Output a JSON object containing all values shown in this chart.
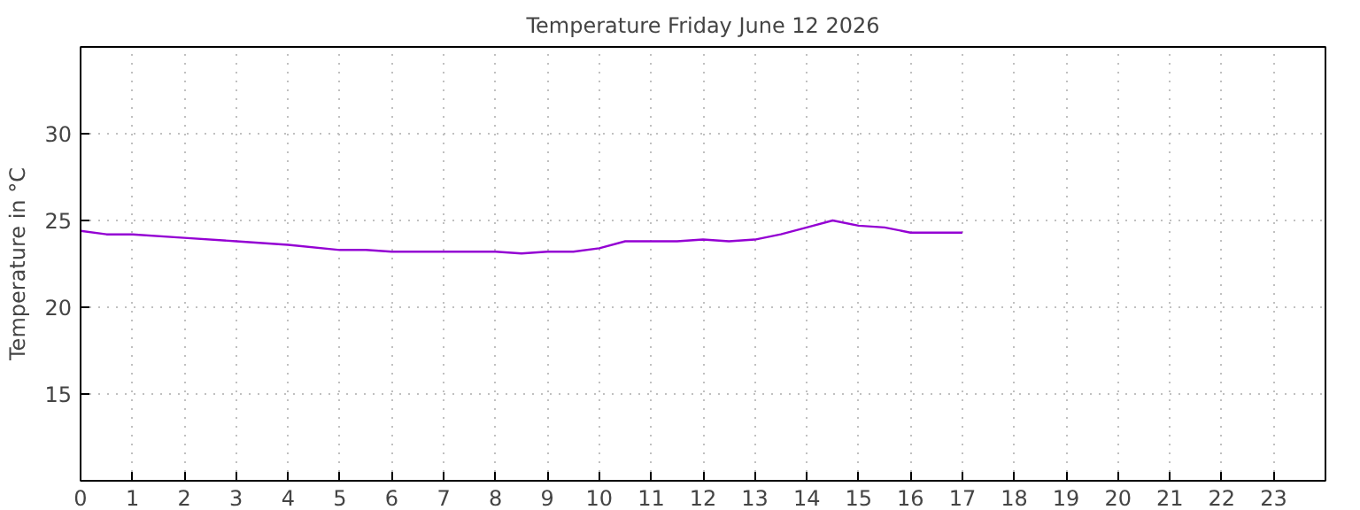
{
  "chart_data": {
    "type": "line",
    "title": "Temperature Friday June 12 2026",
    "ylabel": "Temperature in °C",
    "x": [
      0,
      0.5,
      1,
      2,
      3,
      4,
      5,
      5.5,
      6,
      7,
      8,
      8.5,
      9,
      9.5,
      10,
      10.5,
      11,
      11.5,
      12,
      12.5,
      13,
      13.5,
      14,
      14.5,
      15,
      15.5,
      16,
      16.5,
      17
    ],
    "series": [
      {
        "color": "#9400d3",
        "values": [
          24.4,
          24.2,
          24.2,
          24.0,
          23.8,
          23.6,
          23.3,
          23.3,
          23.2,
          23.2,
          23.2,
          23.1,
          23.2,
          23.2,
          23.4,
          23.8,
          23.8,
          23.8,
          23.9,
          23.8,
          23.9,
          24.2,
          24.6,
          25.0,
          24.7,
          24.6,
          24.3,
          24.3,
          24.3
        ]
      }
    ],
    "xlim": [
      0,
      24
    ],
    "ylim": [
      10,
      35
    ],
    "xticks": [
      0,
      1,
      2,
      3,
      4,
      5,
      6,
      7,
      8,
      9,
      10,
      11,
      12,
      13,
      14,
      15,
      16,
      17,
      18,
      19,
      20,
      21,
      22,
      23
    ],
    "yticks": [
      15,
      20,
      25,
      30
    ],
    "grid": true,
    "line_style": "solid",
    "marker": "none"
  }
}
